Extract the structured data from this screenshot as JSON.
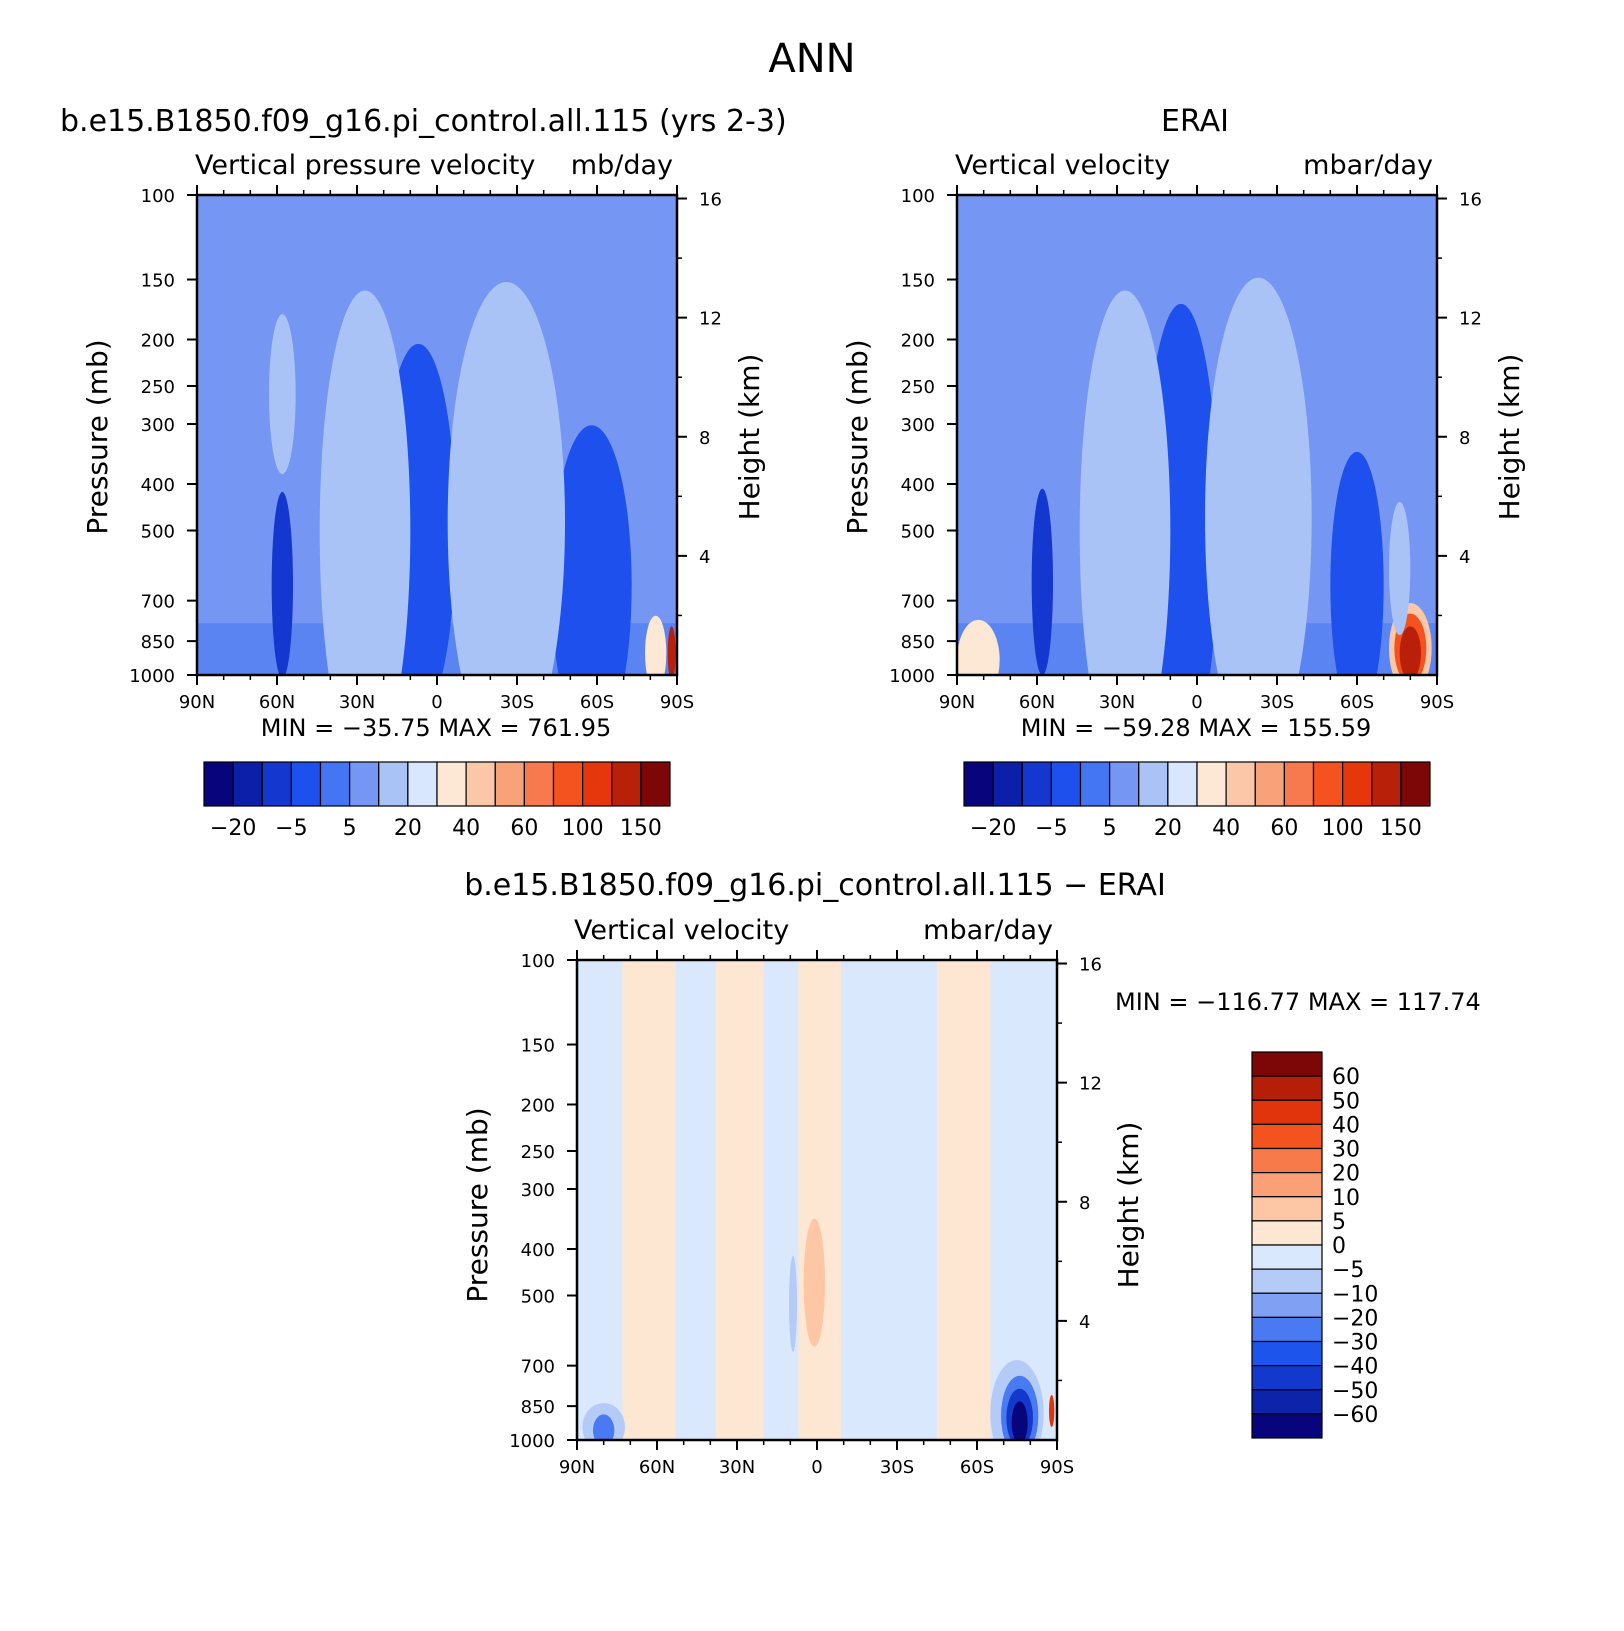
{
  "figure": {
    "title": "ANN"
  },
  "colors": {
    "abs": [
      "#08047c",
      "#0c1fa8",
      "#1337cf",
      "#1d50ec",
      "#4476f3",
      "#7596f2",
      "#a9c3f7",
      "#d8e7fd",
      "#fde8d6",
      "#fbc7a9",
      "#f8a27a",
      "#f77a4e",
      "#f4521e",
      "#e5360c",
      "#b8200a",
      "#7d0606"
    ],
    "diff": [
      "#08047c",
      "#0d23a9",
      "#1339cc",
      "#1d54ec",
      "#4a7af2",
      "#7fa0f3",
      "#b4cbf8",
      "#d9e8fd",
      "#fde6d2",
      "#fdc6a4",
      "#fa9f76",
      "#f77a4b",
      "#f4531f",
      "#e1330c",
      "#b51f08",
      "#7d0606"
    ]
  },
  "chart_data": [
    {
      "type": "heatmap",
      "id": "model",
      "title": "b.e15.B1850.f09_g16.pi_control.all.115 (yrs 2-3)",
      "left_label": "Vertical pressure velocity",
      "right_label": "mb/day",
      "xlabel": "",
      "ylabel": "Pressure (mb)",
      "y2label": "Height (km)",
      "x_ticks": [
        "90N",
        "60N",
        "30N",
        "0",
        "30S",
        "60S",
        "90S"
      ],
      "y_ticks": [
        "100",
        "150",
        "200",
        "250",
        "300",
        "400",
        "500",
        "700",
        "850",
        "1000"
      ],
      "y2_ticks": [
        "16",
        "12",
        "8",
        "4"
      ],
      "ylim": [
        1000,
        100
      ],
      "xlim": [
        90,
        -90
      ],
      "stats": "MIN = −35.75   MAX = 761.95",
      "colorbar_labels": [
        "−20",
        "−5",
        "5",
        "20",
        "40",
        "60",
        "100",
        "150"
      ],
      "features": [
        {
          "lat": 5,
          "p": 600,
          "w": 6,
          "h": 330,
          "value": -24
        },
        {
          "lat": 5,
          "p": 550,
          "w": 8,
          "h": 470,
          "value": -18
        },
        {
          "lat": 7,
          "p": 500,
          "w": 14,
          "h": 700,
          "value": -10
        },
        {
          "lat": 58,
          "p": 650,
          "w": 4,
          "h": 350,
          "value": -11
        },
        {
          "lat": -58,
          "p": 660,
          "w": 10,
          "h": 420,
          "value": -10
        },
        {
          "lat": -58,
          "p": 650,
          "w": 15,
          "h": 600,
          "value": -6
        },
        {
          "lat": 28,
          "p": 570,
          "w": 7,
          "h": 400,
          "value": 27
        },
        {
          "lat": 28,
          "p": 560,
          "w": 12,
          "h": 620,
          "value": 15
        },
        {
          "lat": 27,
          "p": 500,
          "w": 17,
          "h": 900,
          "value": 8
        },
        {
          "lat": -27,
          "p": 540,
          "w": 9,
          "h": 440,
          "value": 25
        },
        {
          "lat": -27,
          "p": 530,
          "w": 15,
          "h": 620,
          "value": 14
        },
        {
          "lat": -26,
          "p": 480,
          "w": 22,
          "h": 900,
          "value": 8
        },
        {
          "lat": 58,
          "p": 260,
          "w": 5,
          "h": 300,
          "value": 8
        },
        {
          "lat": -82,
          "p": 900,
          "w": 4,
          "h": 140,
          "value": 25
        },
        {
          "lat": -88,
          "p": 900,
          "w": 1.5,
          "h": 100,
          "value": 140
        }
      ]
    },
    {
      "type": "heatmap",
      "id": "obs",
      "title": "ERAI",
      "left_label": "Vertical velocity",
      "right_label": "mbar/day",
      "xlabel": "",
      "ylabel": "Pressure (mb)",
      "y2label": "Height (km)",
      "x_ticks": [
        "90N",
        "60N",
        "30N",
        "0",
        "30S",
        "60S",
        "90S"
      ],
      "y_ticks": [
        "100",
        "150",
        "200",
        "250",
        "300",
        "400",
        "500",
        "700",
        "850",
        "1000"
      ],
      "y2_ticks": [
        "16",
        "12",
        "8",
        "4"
      ],
      "ylim": [
        1000,
        100
      ],
      "xlim": [
        90,
        -90
      ],
      "stats": "MIN = −59.28   MAX = 155.59",
      "colorbar_labels": [
        "−20",
        "−5",
        "5",
        "20",
        "40",
        "60",
        "100",
        "150"
      ],
      "features": [
        {
          "lat": 7,
          "p": 600,
          "w": 4,
          "h": 350,
          "value": -30
        },
        {
          "lat": 7,
          "p": 560,
          "w": 6,
          "h": 500,
          "value": -24
        },
        {
          "lat": 7,
          "p": 520,
          "w": 9,
          "h": 680,
          "value": -17
        },
        {
          "lat": 6,
          "p": 500,
          "w": 14,
          "h": 850,
          "value": -9
        },
        {
          "lat": 58,
          "p": 640,
          "w": 4,
          "h": 350,
          "value": -11
        },
        {
          "lat": -62,
          "p": 700,
          "w": 4,
          "h": 330,
          "value": -12
        },
        {
          "lat": -60,
          "p": 650,
          "w": 10,
          "h": 500,
          "value": -7
        },
        {
          "lat": 28,
          "p": 570,
          "w": 7,
          "h": 400,
          "value": 25
        },
        {
          "lat": 28,
          "p": 560,
          "w": 12,
          "h": 620,
          "value": 15
        },
        {
          "lat": 27,
          "p": 500,
          "w": 17,
          "h": 900,
          "value": 8
        },
        {
          "lat": -24,
          "p": 520,
          "w": 7,
          "h": 470,
          "value": 25
        },
        {
          "lat": -24,
          "p": 520,
          "w": 13,
          "h": 620,
          "value": 14
        },
        {
          "lat": -23,
          "p": 470,
          "w": 20,
          "h": 900,
          "value": 8
        },
        {
          "lat": 82,
          "p": 930,
          "w": 8,
          "h": 150,
          "value": 22
        },
        {
          "lat": -80,
          "p": 880,
          "w": 8,
          "h": 170,
          "value": 35
        },
        {
          "lat": -80,
          "p": 880,
          "w": 6,
          "h": 130,
          "value": 70
        },
        {
          "lat": -80,
          "p": 900,
          "w": 4,
          "h": 100,
          "value": 110
        },
        {
          "lat": -76,
          "p": 600,
          "w": 4,
          "h": 250,
          "value": 8
        }
      ]
    },
    {
      "type": "heatmap",
      "id": "diff",
      "title": "b.e15.B1850.f09_g16.pi_control.all.115 − ERAI",
      "left_label": "Vertical velocity",
      "right_label": "mbar/day",
      "xlabel": "",
      "ylabel": "Pressure (mb)",
      "y2label": "Height (km)",
      "x_ticks": [
        "90N",
        "60N",
        "30N",
        "0",
        "30S",
        "60S",
        "90S"
      ],
      "y_ticks": [
        "100",
        "150",
        "200",
        "250",
        "300",
        "400",
        "500",
        "700",
        "850",
        "1000"
      ],
      "y2_ticks": [
        "16",
        "12",
        "8",
        "4"
      ],
      "ylim": [
        1000,
        100
      ],
      "xlim": [
        90,
        -90
      ],
      "stats": "MIN = −116.77   MAX = 117.74",
      "colorbar_labels": [
        "60",
        "50",
        "40",
        "30",
        "20",
        "10",
        "5",
        "0",
        "−5",
        "−10",
        "−20",
        "−30",
        "−40",
        "−50",
        "−60"
      ],
      "bands": [
        {
          "lat": 63,
          "w": 10,
          "value": 2
        },
        {
          "lat": 29,
          "w": 9,
          "value": 2
        },
        {
          "lat": -1,
          "w": 8,
          "value": 2
        },
        {
          "lat": -55,
          "w": 10,
          "value": 2
        }
      ],
      "features": [
        {
          "lat": 1,
          "p": 470,
          "w": 4,
          "h": 240,
          "value": 7
        },
        {
          "lat": 9,
          "p": 520,
          "w": 1.5,
          "h": 180,
          "value": -7
        },
        {
          "lat": -75,
          "p": 880,
          "w": 10,
          "h": 200,
          "value": -8
        },
        {
          "lat": -76,
          "p": 890,
          "w": 7,
          "h": 150,
          "value": -25
        },
        {
          "lat": -76,
          "p": 900,
          "w": 5,
          "h": 110,
          "value": -45
        },
        {
          "lat": -76,
          "p": 920,
          "w": 3,
          "h": 80,
          "value": -70
        },
        {
          "lat": 80,
          "p": 940,
          "w": 8,
          "h": 90,
          "value": -8
        },
        {
          "lat": 80,
          "p": 955,
          "w": 4,
          "h": 60,
          "value": -25
        },
        {
          "lat": -88,
          "p": 870,
          "w": 1,
          "h": 60,
          "value": 45
        }
      ]
    }
  ]
}
